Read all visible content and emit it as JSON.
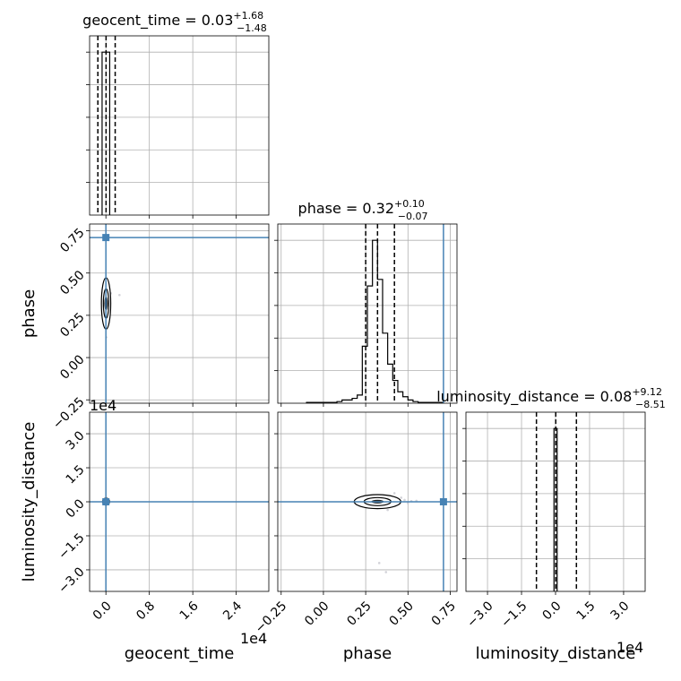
{
  "chart_data": {
    "type": "corner",
    "parameters": [
      "geocent_time",
      "phase",
      "luminosity_distance"
    ],
    "axis_labels": {
      "geocent_time": "geocent_time",
      "phase": "phase",
      "luminosity_distance": "luminosity_distance"
    },
    "titles": [
      {
        "param": "geocent_time",
        "text": "geocent_time = 0.03",
        "sup": "+1.68",
        "sub": "−1.48"
      },
      {
        "param": "phase",
        "text": "phase = 0.32",
        "sup": "+0.10",
        "sub": "−0.07"
      },
      {
        "param": "luminosity_distance",
        "text": "luminosity_distance = 0.08",
        "sup": "+9.12",
        "sub": "−8.51"
      }
    ],
    "offset_texts": {
      "geocent_time_x": "1e4",
      "luminosity_distance_y": "1e4",
      "luminosity_distance_x": "1e4"
    },
    "ranges": {
      "geocent_time": [
        -3000,
        30000
      ],
      "phase": [
        -0.27,
        0.79
      ],
      "luminosity_distance": [
        -39500,
        39500
      ]
    },
    "ticks": {
      "geocent_time": {
        "values": [
          0,
          8000,
          16000,
          24000
        ],
        "labels": [
          "0.0",
          "0.8",
          "1.6",
          "2.4"
        ]
      },
      "phase": {
        "values": [
          -0.25,
          0.0,
          0.25,
          0.5,
          0.75
        ],
        "labels": [
          "−0.25",
          "0.00",
          "0.25",
          "0.50",
          "0.75"
        ]
      },
      "luminosity_distance": {
        "values": [
          -30000,
          -15000,
          0,
          15000,
          30000
        ],
        "labels": [
          "−3.0",
          "−1.5",
          "0.0",
          "1.5",
          "3.0"
        ]
      }
    },
    "truths": {
      "geocent_time": 0,
      "phase": 0.71,
      "luminosity_distance": 0
    },
    "truth_color": "#4682b4",
    "histograms": {
      "geocent_time": {
        "bins": [
          [
            -700,
            700
          ]
        ],
        "counts": [
          1.0
        ],
        "quantile_lines": [
          -1480,
          30,
          1710
        ]
      },
      "phase": {
        "bins": [
          [
            -0.1,
            -0.07
          ],
          [
            -0.07,
            -0.04
          ],
          [
            -0.04,
            -0.01
          ],
          [
            -0.01,
            0.02
          ],
          [
            0.02,
            0.05
          ],
          [
            0.05,
            0.08
          ],
          [
            0.08,
            0.11
          ],
          [
            0.11,
            0.14
          ],
          [
            0.14,
            0.17
          ],
          [
            0.17,
            0.2
          ],
          [
            0.2,
            0.23
          ],
          [
            0.23,
            0.26
          ],
          [
            0.26,
            0.29
          ],
          [
            0.29,
            0.32
          ],
          [
            0.32,
            0.35
          ],
          [
            0.35,
            0.38
          ],
          [
            0.38,
            0.41
          ],
          [
            0.41,
            0.44
          ],
          [
            0.44,
            0.47
          ],
          [
            0.47,
            0.5
          ],
          [
            0.5,
            0.53
          ],
          [
            0.53,
            0.56
          ],
          [
            0.56,
            0.59
          ],
          [
            0.59,
            0.62
          ],
          [
            0.62,
            0.65
          ],
          [
            0.65,
            0.68
          ],
          [
            0.68,
            0.71
          ]
        ],
        "counts": [
          0.005,
          0.005,
          0.005,
          0.005,
          0.005,
          0.005,
          0.01,
          0.02,
          0.02,
          0.03,
          0.05,
          0.35,
          0.72,
          1.0,
          0.76,
          0.43,
          0.24,
          0.14,
          0.07,
          0.04,
          0.02,
          0.01,
          0.005,
          0.005,
          0.005,
          0.005,
          0.005
        ],
        "quantile_lines": [
          0.25,
          0.32,
          0.42
        ]
      },
      "luminosity_distance": {
        "bins": [
          [
            -700,
            700
          ]
        ],
        "counts": [
          1.0
        ],
        "quantile_lines": [
          -8430,
          80,
          9200
        ]
      }
    },
    "scatter": {
      "phase_vs_geocent_time": {
        "x": [
          0,
          120,
          -120,
          250,
          -200,
          400,
          60,
          -60,
          300,
          150,
          -300,
          900,
          2500,
          80,
          -40
        ],
        "y": [
          0.3,
          0.33,
          0.28,
          0.36,
          0.25,
          0.22,
          0.4,
          0.18,
          0.31,
          0.27,
          0.34,
          0.38,
          0.37,
          0.12,
          0.43
        ]
      },
      "luminosity_distance_vs_phase": {
        "x": [
          0.2,
          0.25,
          0.28,
          0.31,
          0.33,
          0.36,
          0.4,
          0.44,
          0.48,
          0.5,
          0.52,
          0.27,
          0.35,
          0.42,
          0.38,
          0.46,
          0.3,
          0.22,
          0.18,
          0.55,
          0.33,
          0.37
        ],
        "y": [
          600,
          -800,
          1200,
          300,
          -400,
          900,
          -1100,
          500,
          800,
          -600,
          300,
          2200,
          -2000,
          3800,
          -3600,
          1800,
          -1500,
          200,
          -100,
          400,
          -27000,
          -31000
        ]
      },
      "luminosity_distance_vs_geocent_time": {
        "x": [
          0,
          150,
          -150,
          250,
          -250,
          80
        ],
        "y": [
          0,
          300,
          -300,
          150,
          -150,
          500
        ]
      }
    }
  }
}
